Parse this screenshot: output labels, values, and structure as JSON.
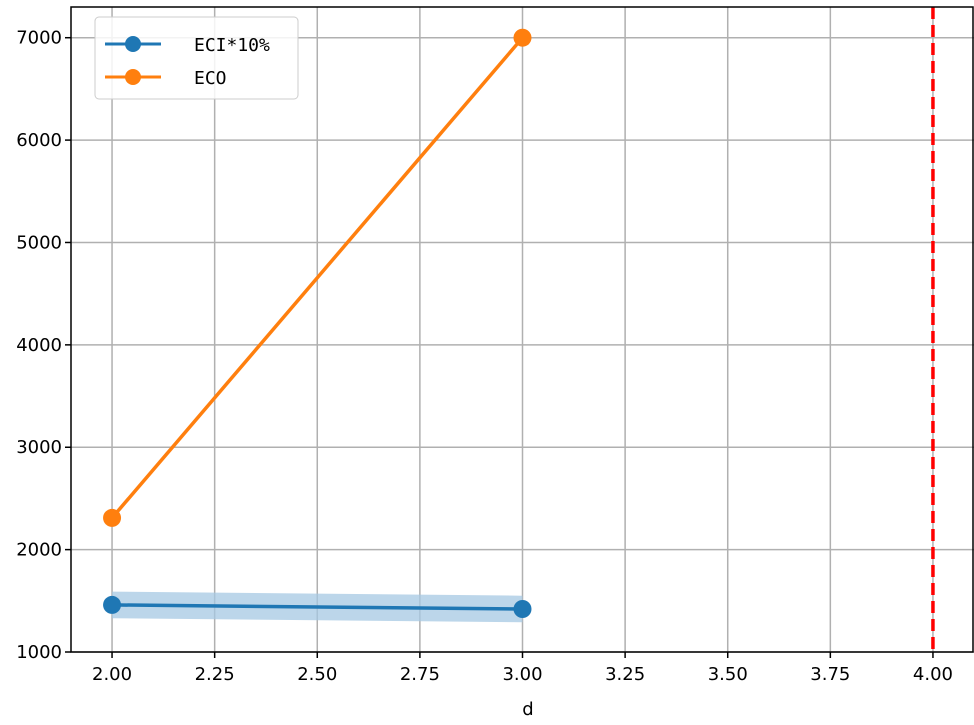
{
  "colors": {
    "series_blue": "#1f77b4",
    "series_orange": "#ff7f0e",
    "band_blue": "#a6c8e3",
    "ref_line_red": "#ff0000",
    "grid": "#b0b0b0"
  },
  "chart_data": {
    "type": "line",
    "title": "",
    "xlabel": "d",
    "ylabel": "",
    "xlim": [
      1.9,
      4.1
    ],
    "ylim": [
      1000,
      7300
    ],
    "grid": true,
    "legend_position": "upper-left",
    "x_ticks": [
      2.0,
      2.25,
      2.5,
      2.75,
      3.0,
      3.25,
      3.5,
      3.75,
      4.0
    ],
    "x_tick_labels": [
      "2.00",
      "2.25",
      "2.50",
      "2.75",
      "3.00",
      "3.25",
      "3.50",
      "3.75",
      "4.00"
    ],
    "y_ticks": [
      1000,
      2000,
      3000,
      4000,
      5000,
      6000,
      7000
    ],
    "y_tick_labels": [
      "1000",
      "2000",
      "3000",
      "4000",
      "5000",
      "6000",
      "7000"
    ],
    "series": [
      {
        "name": "ECI*10%",
        "color": "#1f77b4",
        "x": [
          2.0,
          3.0
        ],
        "y": [
          1460,
          1420
        ],
        "band_lower": [
          1330,
          1290
        ],
        "band_upper": [
          1590,
          1550
        ]
      },
      {
        "name": "ECO",
        "color": "#ff7f0e",
        "x": [
          2.0,
          3.0
        ],
        "y": [
          2310,
          7000
        ]
      }
    ],
    "reference_line": {
      "orientation": "vertical",
      "x": 4.0,
      "style": "dashed",
      "color": "#ff0000"
    }
  }
}
